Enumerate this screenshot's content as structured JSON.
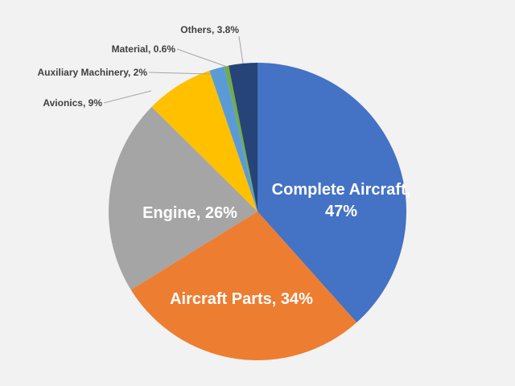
{
  "chart_data": {
    "type": "pie",
    "title": "",
    "start_angle_deg": 0,
    "direction": "clockwise",
    "legend": "none",
    "slices": [
      {
        "label": "Complete Aircraft",
        "value": 47,
        "display": "Complete Aircraft, 47%",
        "display_lines": [
          "Complete Aircraft,",
          "47%"
        ],
        "color": "#4472c4",
        "label_position": "inside"
      },
      {
        "label": "Aircraft Parts",
        "value": 34,
        "display": "Aircraft Parts, 34%",
        "display_lines": [
          "Aircraft Parts, 34%"
        ],
        "color": "#ed7d31",
        "label_position": "inside"
      },
      {
        "label": "Engine",
        "value": 26,
        "display": "Engine, 26%",
        "display_lines": [
          "Engine, 26%"
        ],
        "color": "#a5a5a5",
        "label_position": "inside"
      },
      {
        "label": "Avionics",
        "value": 9,
        "display": "Avionics, 9%",
        "display_lines": [
          "Avionics, 9%"
        ],
        "color": "#ffc000",
        "label_position": "outside"
      },
      {
        "label": "Auxiliary Machinery",
        "value": 2,
        "display": "Auxiliary Machinery, 2%",
        "display_lines": [
          "Auxiliary Machinery, 2%"
        ],
        "color": "#5b9bd5",
        "label_position": "outside"
      },
      {
        "label": "Material",
        "value": 0.6,
        "display": "Material, 0.6%",
        "display_lines": [
          "Material, 0.6%"
        ],
        "color": "#70ad47",
        "label_position": "outside"
      },
      {
        "label": "Others",
        "value": 3.8,
        "display": "Others, 3.8%",
        "display_lines": [
          "Others, 3.8%"
        ],
        "color": "#264478",
        "label_position": "outside"
      }
    ]
  }
}
